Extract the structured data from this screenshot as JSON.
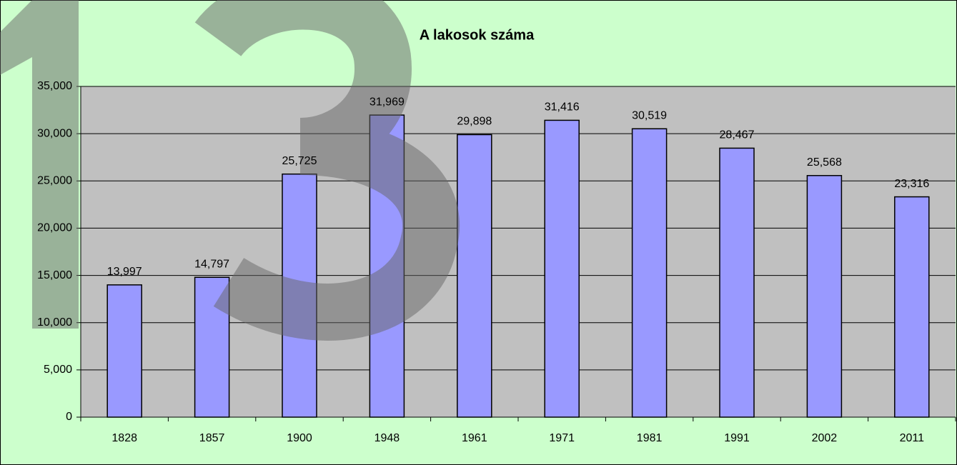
{
  "chart_data": {
    "type": "bar",
    "title": "A lakosok száma",
    "categories": [
      "1828",
      "1857",
      "1900",
      "1948",
      "1961",
      "1971",
      "1981",
      "1991",
      "2002",
      "2011"
    ],
    "values": [
      13997,
      14797,
      25725,
      31969,
      29898,
      31416,
      30519,
      28467,
      25568,
      23316
    ],
    "value_labels": [
      "13,997",
      "14,797",
      "25,725",
      "31,969",
      "29,898",
      "31,416",
      "30,519",
      "28,467",
      "25,568",
      "23,316"
    ],
    "color": "#9999ff",
    "ylim": [
      0,
      35000
    ],
    "yticks": [
      0,
      {
        "value": 5000,
        "label": "5,000"
      },
      {
        "value": 10000,
        "label": "10,000"
      },
      {
        "value": 15000,
        "label": "15,000"
      },
      {
        "value": 20000,
        "label": "20,000"
      },
      {
        "value": 25000,
        "label": "25,000"
      },
      {
        "value": 30000,
        "label": "30,000"
      },
      {
        "value": 35000,
        "label": "35,000"
      }
    ],
    "grid": true
  }
}
